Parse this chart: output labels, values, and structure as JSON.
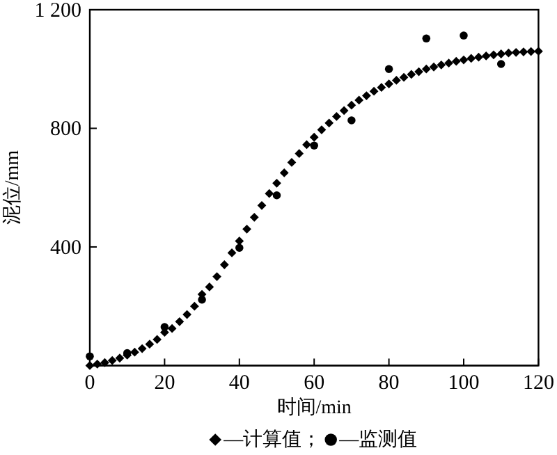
{
  "chart_data": {
    "type": "scatter",
    "xlabel": "时间/min",
    "ylabel": "泥位/mm",
    "xlim": [
      0,
      120
    ],
    "xticks": [
      0,
      20,
      40,
      60,
      80,
      100,
      120
    ],
    "ylim": [
      0,
      1200
    ],
    "yticks": [
      {
        "value": 400,
        "label": "400"
      },
      {
        "value": 800,
        "label": "800"
      },
      {
        "value": 1200,
        "label": "1 200"
      }
    ],
    "grid": false,
    "legend": "bottom",
    "series": [
      {
        "name": "—计算值；",
        "color": "#000000",
        "marker": "diamond",
        "x": [
          0,
          2,
          4,
          6,
          8,
          10,
          12,
          14,
          16,
          18,
          20,
          22,
          24,
          26,
          28,
          30,
          32,
          34,
          36,
          38,
          40,
          42,
          44,
          46,
          48,
          50,
          52,
          54,
          56,
          58,
          60,
          62,
          64,
          66,
          68,
          70,
          72,
          74,
          76,
          78,
          80,
          82,
          84,
          86,
          88,
          90,
          92,
          94,
          96,
          98,
          100,
          102,
          104,
          106,
          108,
          110,
          112,
          114,
          116,
          118,
          120
        ],
        "values": [
          0,
          5,
          10,
          17,
          25,
          35,
          45,
          57,
          72,
          88,
          112,
          125,
          148,
          172,
          200,
          240,
          265,
          300,
          340,
          380,
          420,
          460,
          500,
          540,
          580,
          615,
          650,
          685,
          715,
          745,
          770,
          795,
          818,
          840,
          860,
          878,
          895,
          910,
          925,
          938,
          950,
          962,
          972,
          982,
          991,
          1000,
          1007,
          1014,
          1020,
          1026,
          1031,
          1036,
          1040,
          1044,
          1048,
          1051,
          1054,
          1056,
          1058,
          1059,
          1060
        ]
      },
      {
        "name": "—监测值",
        "color": "#000000",
        "marker": "circle",
        "x": [
          0,
          10,
          20,
          30,
          40,
          50,
          60,
          70,
          80,
          90,
          100,
          110
        ],
        "values": [
          31,
          42,
          130,
          222,
          397,
          574,
          742,
          827,
          1000,
          1103,
          1113,
          1017
        ]
      }
    ]
  }
}
